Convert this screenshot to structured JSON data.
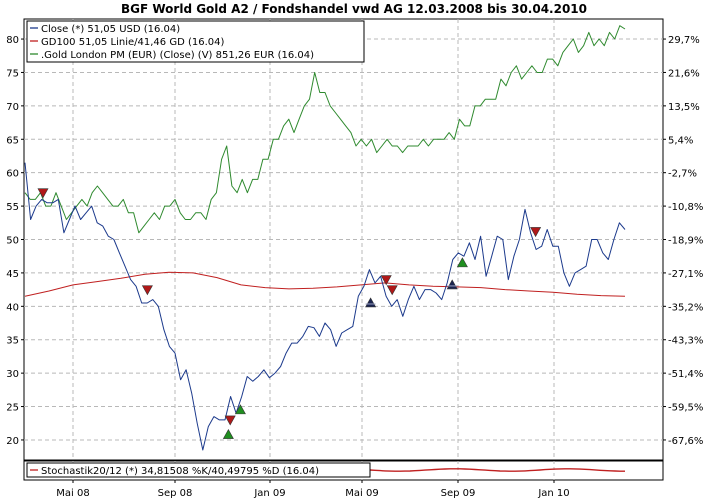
{
  "chart_data": {
    "type": "line",
    "title": "BGF World Gold A2 / Fondshandel vwd AG 12.03.2008 bis 30.04.2010",
    "x_tick_labels": [
      "Mai 08",
      "Sep 08",
      "Jan 09",
      "Mai 09",
      "Sep 09",
      "Jan 10"
    ],
    "y_left": {
      "ticks": [
        20,
        25,
        30,
        35,
        40,
        45,
        50,
        55,
        60,
        65,
        70,
        75,
        80
      ],
      "range": [
        17,
        83
      ]
    },
    "y_right": {
      "tick_labels": [
        "29,7%",
        "21,6%",
        "13,5%",
        "5,4%",
        "-2,7%",
        "-10,8%",
        "-18,9%",
        "-27,1%",
        "-35,2%",
        "-43,3%",
        "-51,4%",
        "-59,5%",
        "-67,6%"
      ]
    },
    "grid": true,
    "legend_position": "top-left",
    "series": [
      {
        "name": "Close (*) 51,05 USD (16.04)",
        "color": "#1c3a8c",
        "values": [
          61.5,
          53,
          55,
          56,
          55.5,
          55.5,
          56,
          51,
          53,
          55,
          53,
          54,
          55,
          52.5,
          52,
          50.5,
          50,
          48,
          46,
          44,
          43,
          40.5,
          40.5,
          41,
          40,
          36.5,
          34,
          33,
          29,
          30.5,
          27,
          22.5,
          18.5,
          22,
          23.5,
          23,
          23,
          26.5,
          24,
          26.5,
          29.5,
          28.8,
          29.5,
          30.5,
          29.3,
          30,
          31,
          33,
          34.5,
          34.5,
          35.5,
          37,
          36.8,
          35.5,
          37.5,
          36.5,
          34,
          36,
          36.5,
          37,
          41.5,
          43,
          45.5,
          43.5,
          44.5,
          41.5,
          40,
          41,
          38.5,
          41,
          43,
          41,
          42.5,
          42.5,
          42,
          41,
          43.5,
          47,
          48,
          47.5,
          49.5,
          47,
          50.5,
          44.5,
          47.5,
          50.5,
          50,
          44,
          47.5,
          50,
          54.5,
          51,
          48.5,
          49,
          51.5,
          49,
          49,
          45,
          43,
          45,
          45.5,
          46,
          50,
          50,
          48,
          47,
          50,
          52.5,
          51.5
        ]
      },
      {
        "name": "GD100 51,05 Linie/41,46 GD (16.04)",
        "color": "#c02020",
        "values": [
          41.5,
          42.3,
          43.2,
          43.7,
          44.2,
          44.8,
          45.1,
          45,
          44.3,
          43.2,
          42.8,
          42.6,
          42.7,
          42.9,
          43.2,
          43.5,
          43.2,
          43,
          42.9,
          42.8,
          42.5,
          42.3,
          42.1,
          41.8,
          41.6,
          41.5
        ]
      },
      {
        "name": ".Gold London PM (EUR) (Close) (V) 851,26 EUR (16.04)",
        "color": "#2f8a2f",
        "values": [
          57,
          56,
          56,
          57,
          55,
          55,
          57,
          55,
          53,
          54,
          55,
          56,
          55,
          57,
          58,
          57,
          56,
          55,
          55,
          56,
          54,
          54,
          51,
          52,
          53,
          54,
          53,
          55,
          55,
          56,
          54,
          53,
          53,
          54,
          54,
          53,
          56,
          57,
          62,
          64,
          58,
          57,
          59,
          57,
          59,
          59,
          62,
          62,
          65,
          65,
          67,
          68,
          66,
          68,
          70,
          71,
          75,
          72,
          72,
          70,
          69,
          68,
          67,
          66,
          64,
          65,
          64,
          65,
          63,
          64,
          65,
          64,
          64,
          63,
          64,
          64,
          64,
          65,
          64,
          65,
          65,
          65,
          66,
          65,
          68,
          67,
          67,
          70,
          70,
          71,
          71,
          71,
          74,
          73,
          75,
          76,
          74,
          75,
          76,
          75,
          75,
          77,
          77,
          76,
          78,
          79,
          80,
          78,
          79,
          81,
          79,
          80,
          79,
          81,
          80,
          82,
          81.5
        ]
      }
    ],
    "signals": [
      {
        "kind": "sell",
        "x": 0.03,
        "y": 57
      },
      {
        "kind": "sell",
        "x": 0.204,
        "y": 42.5
      },
      {
        "kind": "buy",
        "x": 0.339,
        "y": 20.8
      },
      {
        "kind": "sell",
        "x": 0.342,
        "y": 23
      },
      {
        "kind": "buy",
        "x": 0.359,
        "y": 24.5
      },
      {
        "kind": "neutral",
        "x": 0.576,
        "y": 40.5
      },
      {
        "kind": "sell",
        "x": 0.602,
        "y": 44
      },
      {
        "kind": "sell",
        "x": 0.612,
        "y": 42.5
      },
      {
        "kind": "neutral",
        "x": 0.712,
        "y": 43.2
      },
      {
        "kind": "buy",
        "x": 0.729,
        "y": 46.5
      },
      {
        "kind": "sell",
        "x": 0.851,
        "y": 51.2
      }
    ],
    "signal_colors": {
      "sell": "#b01818",
      "buy": "#1f8f1f",
      "neutral": "#1a2450"
    },
    "sub_panel": {
      "legend": "Stochastik20/12 (*) 34,81508 %K/40,49795 %D (16.04)",
      "line_color": "#c02020"
    }
  }
}
